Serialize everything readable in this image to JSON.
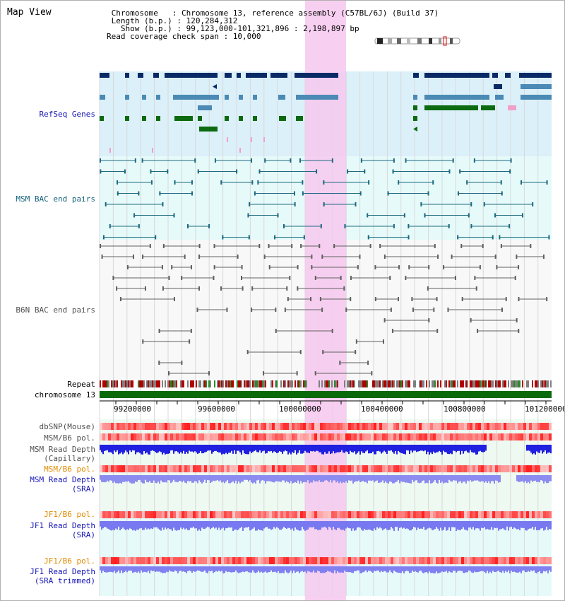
{
  "view_title": "Map View",
  "info": {
    "line1": " Chromosome   : Chromosome 13, reference assembly (C57BL/6J) (Build 37)",
    "line2": " Length (b.p.) : 120,284,312",
    "line3": "   Show (b.p.) : 99,123,000-101,321,896 : 2,198,897 bp",
    "line4": "Read coverage check span : 10,000"
  },
  "tracks": {
    "refseq": "RefSeq Genes",
    "msm_bac": "MSM BAC end pairs",
    "b6n_bac": "B6N BAC end pairs",
    "repeat": "Repeat",
    "chromosome": "chromosome 13",
    "dbsnp": "dbSNP(Mouse)",
    "msm_b6_pol": "MSM/B6 pol.",
    "msm_depth_cap": "MSM Read Depth\n(Capillary)",
    "msm_b6_pol_sra": "MSM/B6 pol.",
    "msm_depth_sra": "MSM Read Depth\n(SRA)",
    "jf1_b6_pol": "JF1/B6 pol.",
    "jf1_depth_sra": "JF1 Read Depth\n(SRA)",
    "jf1_b6_pol_trim": "JF1/B6 pol.",
    "jf1_depth_trim": "JF1 Read Depth\n(SRA trimmed)"
  },
  "ruler": {
    "ticks": [
      "99200000",
      "99600000",
      "100000000",
      "100400000",
      "100800000",
      "101200000"
    ]
  },
  "colors": {
    "refseq_dark": "#0a2a66",
    "refseq_mid": "#4a8ab4",
    "refseq_green": "#0c6a10",
    "msm_bac": "#1e6a80",
    "b6n_bac": "#606060",
    "highlight": "#f6c8ee",
    "chromosome_bar": "#0a6a0a",
    "label_blue": "#1414b4",
    "label_teal": "#12607a",
    "label_gray": "#505050",
    "label_orange": "#e08a00"
  }
}
